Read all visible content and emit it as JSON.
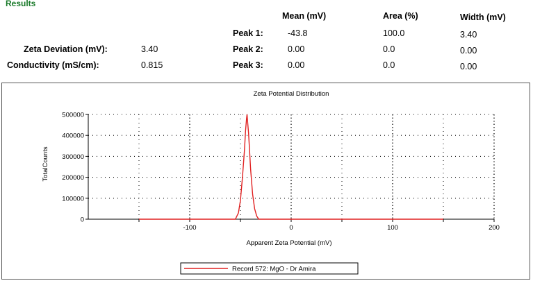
{
  "results": {
    "title": "Results",
    "headers": {
      "mean": "Mean (mV)",
      "area": "Area (%)",
      "width": "Width (mV)"
    },
    "zeta_deviation_label": "Zeta Deviation (mV):",
    "zeta_deviation_value": "3.40",
    "conductivity_label": "Conductivity (mS/cm):",
    "conductivity_value": "0.815",
    "peaks": [
      {
        "label": "Peak 1:",
        "mean": "-43.8",
        "area": "100.0",
        "width": "3.40"
      },
      {
        "label": "Peak 2:",
        "mean": "0.00",
        "area": "0.0",
        "width": "0.00"
      },
      {
        "label": "Peak 3:",
        "mean": "0.00",
        "area": "0.0",
        "width": "0.00"
      }
    ]
  },
  "chart_data": {
    "type": "line",
    "title": "Zeta Potential Distribution",
    "xlabel": "Apparent Zeta Potential (mV)",
    "ylabel": "TotalCounts",
    "xlim": [
      -200,
      200
    ],
    "ylim": [
      0,
      500000
    ],
    "x_ticks": [
      -100,
      0,
      100,
      200
    ],
    "y_ticks": [
      0,
      100000,
      200000,
      300000,
      400000,
      500000
    ],
    "grid": true,
    "legend_position": "bottom-center",
    "series": [
      {
        "name": "Record 572: MgO - Dr Amira",
        "color": "#e02020",
        "x": [
          -150,
          -55,
          -52,
          -50,
          -48,
          -46,
          -45,
          -44,
          -43.5,
          -43,
          -42,
          -41,
          -40,
          -38,
          -36,
          -34,
          -32,
          150
        ],
        "y": [
          0,
          0,
          30000,
          90000,
          200000,
          330000,
          420000,
          480000,
          500000,
          470000,
          410000,
          330000,
          240000,
          120000,
          50000,
          15000,
          0,
          0
        ]
      }
    ]
  }
}
